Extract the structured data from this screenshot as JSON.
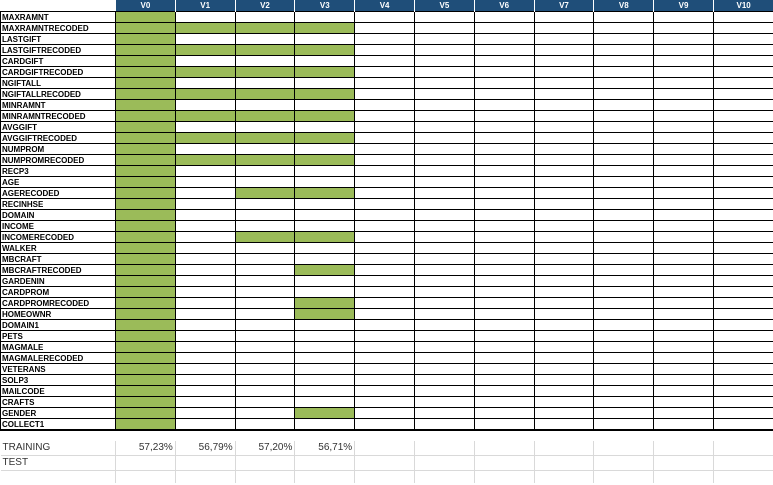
{
  "columns": [
    "V0",
    "V1",
    "V2",
    "V3",
    "V4",
    "V5",
    "V6",
    "V7",
    "V8",
    "V9",
    "V10"
  ],
  "colors": {
    "header": "#1f4e79",
    "selected": "#9bbb59"
  },
  "variables": [
    {
      "name": "MAXRAMNT",
      "on": [
        0
      ]
    },
    {
      "name": "MAXRAMNTRECODED",
      "on": [
        0,
        1,
        2,
        3
      ]
    },
    {
      "name": "LASTGIFT",
      "on": [
        0
      ]
    },
    {
      "name": "LASTGIFTRECODED",
      "on": [
        0,
        1,
        2,
        3
      ]
    },
    {
      "name": "CARDGIFT",
      "on": [
        0
      ]
    },
    {
      "name": "CARDGIFTRECODED",
      "on": [
        0,
        1,
        2,
        3
      ]
    },
    {
      "name": "NGIFTALL",
      "on": [
        0
      ]
    },
    {
      "name": "NGIFTALLRECODED",
      "on": [
        0,
        1,
        2,
        3
      ]
    },
    {
      "name": "MINRAMNT",
      "on": [
        0
      ]
    },
    {
      "name": "MINRAMNTRECODED",
      "on": [
        0,
        1,
        2,
        3
      ]
    },
    {
      "name": "AVGGIFT",
      "on": [
        0
      ]
    },
    {
      "name": "AVGGIFTRECODED",
      "on": [
        0,
        1,
        2,
        3
      ]
    },
    {
      "name": "NUMPROM",
      "on": [
        0
      ]
    },
    {
      "name": "NUMPROMRECODED",
      "on": [
        0,
        1,
        2,
        3
      ]
    },
    {
      "name": "RECP3",
      "on": [
        0
      ]
    },
    {
      "name": "AGE",
      "on": [
        0
      ]
    },
    {
      "name": "AGERECODED",
      "on": [
        0,
        2,
        3
      ]
    },
    {
      "name": "RECINHSE",
      "on": [
        0
      ]
    },
    {
      "name": "DOMAIN",
      "on": [
        0
      ]
    },
    {
      "name": "INCOME",
      "on": [
        0
      ]
    },
    {
      "name": "INCOMERECODED",
      "on": [
        0,
        2,
        3
      ]
    },
    {
      "name": "WALKER",
      "on": [
        0
      ]
    },
    {
      "name": "MBCRAFT",
      "on": [
        0
      ]
    },
    {
      "name": "MBCRAFTRECODED",
      "on": [
        0,
        3
      ]
    },
    {
      "name": "GARDENIN",
      "on": [
        0
      ]
    },
    {
      "name": "CARDPROM",
      "on": [
        0
      ]
    },
    {
      "name": "CARDPROMRECODED",
      "on": [
        0,
        3
      ]
    },
    {
      "name": "HOMEOWNR",
      "on": [
        0,
        3
      ]
    },
    {
      "name": "DOMAIN1",
      "on": [
        0
      ]
    },
    {
      "name": "PETS",
      "on": [
        0
      ]
    },
    {
      "name": "MAGMALE",
      "on": [
        0
      ]
    },
    {
      "name": "MAGMALERECODED",
      "on": [
        0
      ]
    },
    {
      "name": "VETERANS",
      "on": [
        0
      ]
    },
    {
      "name": "SOLP3",
      "on": [
        0
      ]
    },
    {
      "name": "MAILCODE",
      "on": [
        0
      ]
    },
    {
      "name": "CRAFTS",
      "on": [
        0
      ]
    },
    {
      "name": "GENDER",
      "on": [
        0,
        3
      ]
    },
    {
      "name": "COLLECT1",
      "on": [
        0
      ]
    }
  ],
  "summary": [
    {
      "label": "TRAINING",
      "values": [
        "57,23%",
        "56,79%",
        "57,20%",
        "56,71%",
        "",
        "",
        "",
        "",
        "",
        "",
        ""
      ]
    },
    {
      "label": "TEST",
      "values": [
        "",
        "",
        "",
        "",
        "",
        "",
        "",
        "",
        "",
        "",
        ""
      ]
    }
  ]
}
